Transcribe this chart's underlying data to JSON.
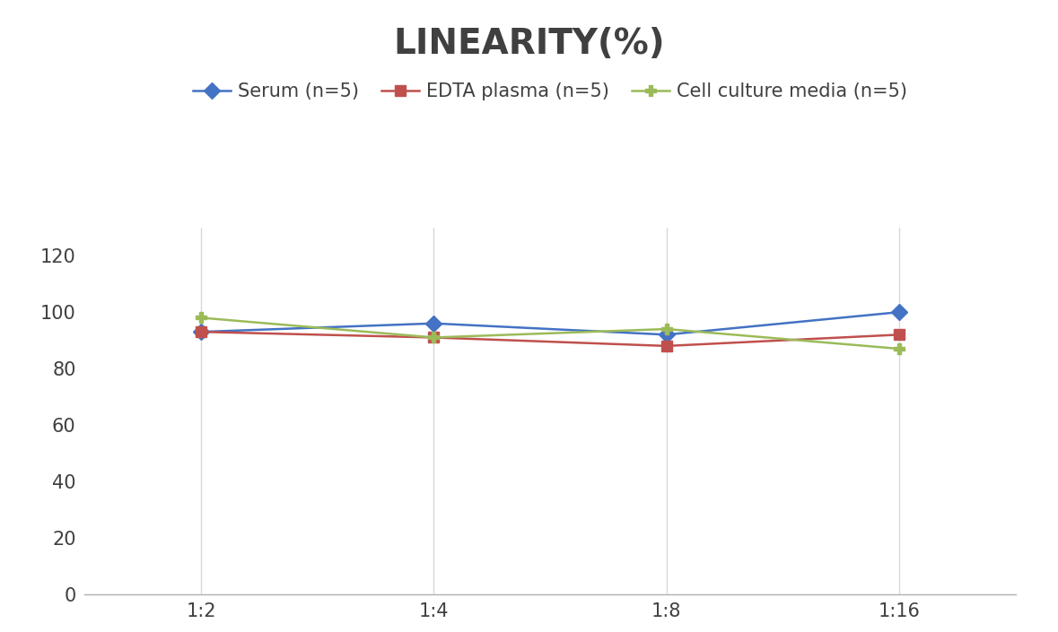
{
  "title": "LINEARITY(%)",
  "x_labels": [
    "1:2",
    "1:4",
    "1:8",
    "1:16"
  ],
  "x_positions": [
    0,
    1,
    2,
    3
  ],
  "series": [
    {
      "name": "Serum (n=5)",
      "values": [
        93,
        96,
        92,
        100
      ],
      "color": "#4472C4",
      "marker": "D"
    },
    {
      "name": "EDTA plasma (n=5)",
      "values": [
        93,
        91,
        88,
        92
      ],
      "color": "#C0504D",
      "marker": "s"
    },
    {
      "name": "Cell culture media (n=5)",
      "values": [
        98,
        91,
        94,
        87
      ],
      "color": "#9BBB59",
      "marker": "P"
    }
  ],
  "ylim": [
    0,
    130
  ],
  "yticks": [
    0,
    20,
    40,
    60,
    80,
    100,
    120
  ],
  "title_fontsize": 28,
  "tick_fontsize": 15,
  "legend_fontsize": 15,
  "background_color": "#ffffff",
  "grid_color": "#d8d8d8",
  "title_color": "#404040"
}
